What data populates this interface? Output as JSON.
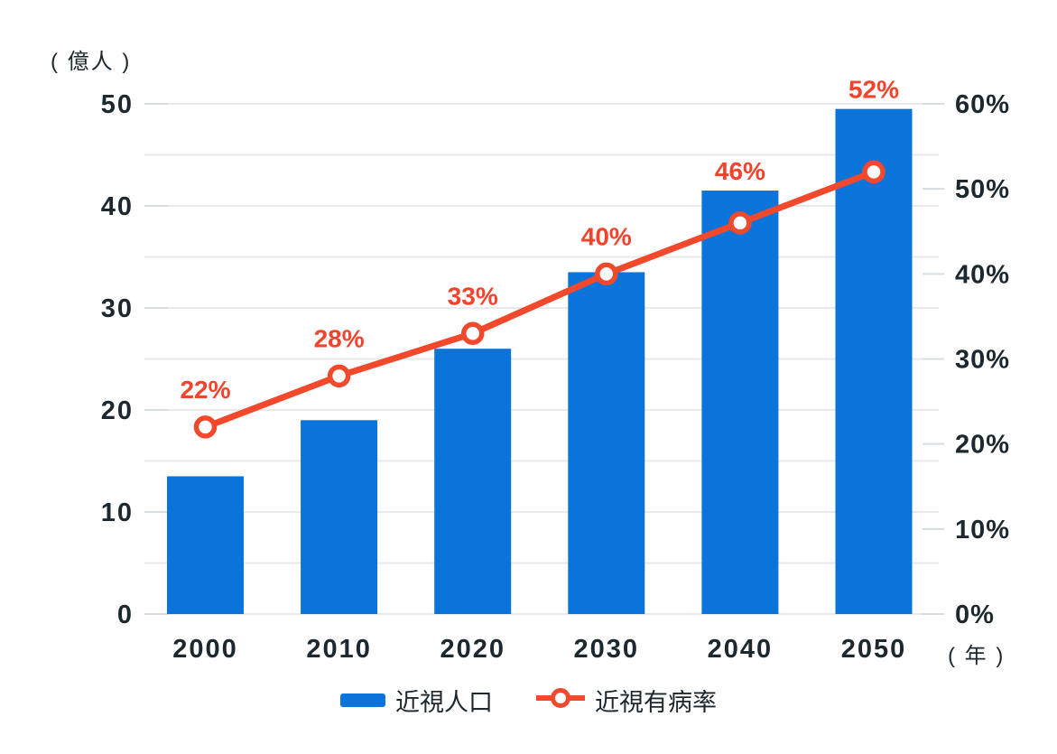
{
  "chart_data": {
    "type": "bar",
    "title": "",
    "categories": [
      "2000",
      "2010",
      "2020",
      "2030",
      "2040",
      "2050"
    ],
    "series": [
      {
        "name": "近視人口",
        "type": "bar",
        "axis": "left",
        "values": [
          13.5,
          19,
          26,
          33.5,
          41.5,
          49.5
        ]
      },
      {
        "name": "近視有病率",
        "type": "line",
        "axis": "right",
        "values": [
          22,
          28,
          33,
          40,
          46,
          52
        ],
        "point_labels": [
          "22%",
          "28%",
          "33%",
          "40%",
          "46%",
          "52%"
        ]
      }
    ],
    "left_axis": {
      "unit": "( 億人 )",
      "range": [
        0,
        50
      ],
      "tick_step": 10,
      "grid_step": 5,
      "tick_labels": [
        "0",
        "10",
        "20",
        "30",
        "40",
        "50"
      ]
    },
    "right_axis": {
      "range": [
        0,
        60
      ],
      "tick_step": 10,
      "tick_labels": [
        "0%",
        "10%",
        "20%",
        "30%",
        "40%",
        "50%",
        "60%"
      ]
    },
    "x_axis": {
      "unit": "( 年 )"
    },
    "grid": true,
    "legend_position": "bottom"
  },
  "legend": {
    "items": [
      {
        "label": "近視人口",
        "swatch": "bar"
      },
      {
        "label": "近視有病率",
        "swatch": "line-marker"
      }
    ]
  },
  "colors": {
    "bar": "#0B74DB",
    "line": "#F2482C",
    "point_label": "#F2432C",
    "text": "#1C272E",
    "grid": "#E9E9E9",
    "tick": "#D8DDE0",
    "marker_fill": "#FFFFFF",
    "background": "#FFFFFF"
  }
}
